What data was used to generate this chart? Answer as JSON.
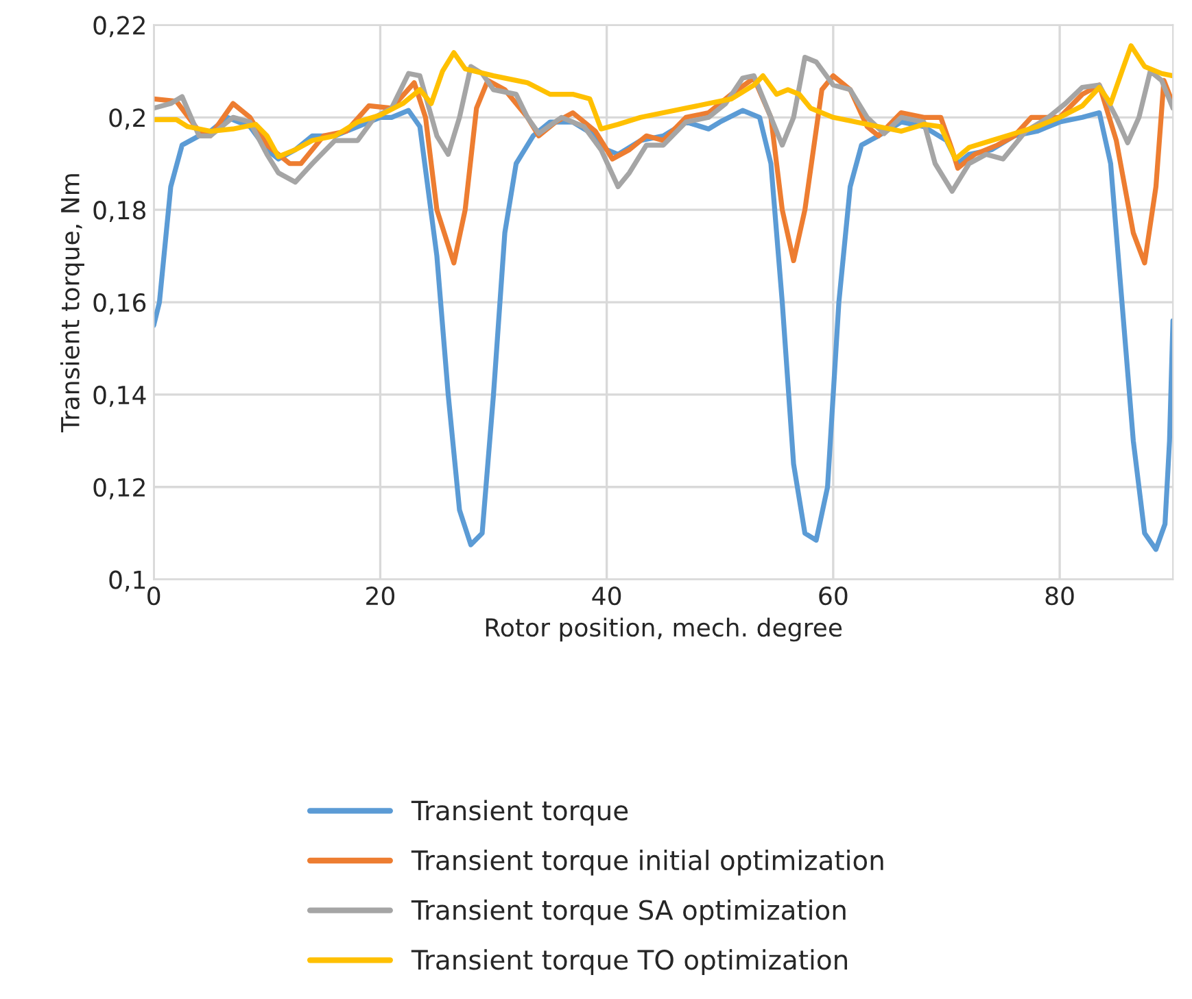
{
  "chart_data": {
    "type": "line",
    "xlabel": "Rotor position, mech. degree",
    "ylabel": "Transient torque, Nm",
    "xlim": [
      0,
      90
    ],
    "xticks": [
      0,
      20,
      40,
      60,
      80
    ],
    "ylim": [
      0.1,
      0.22
    ],
    "yticks": [
      {
        "value": 0.1,
        "label": "0,1"
      },
      {
        "value": 0.12,
        "label": "0,12"
      },
      {
        "value": 0.14,
        "label": "0,14"
      },
      {
        "value": 0.16,
        "label": "0,16"
      },
      {
        "value": 0.18,
        "label": "0,18"
      },
      {
        "value": 0.2,
        "label": "0,2"
      },
      {
        "value": 0.22,
        "label": "0,22"
      }
    ],
    "grid": true,
    "legend": "bottom",
    "marker": "none",
    "line_style": "solid",
    "series": [
      {
        "name": "Transient torque",
        "color": "#5b9bd5",
        "x": [
          0,
          0.5,
          1.5,
          2.5,
          4,
          5,
          6.5,
          8.5,
          10,
          11,
          12.5,
          14,
          16,
          18,
          20,
          21,
          22.5,
          23.5,
          25,
          26,
          27,
          28,
          29,
          30,
          31,
          32,
          33.5,
          35,
          37,
          39,
          40,
          41,
          43,
          45,
          47,
          49,
          50,
          52,
          53.5,
          54.5,
          55.5,
          56.5,
          57.5,
          58.5,
          59.5,
          60.5,
          61.5,
          62.5,
          64,
          66,
          68,
          70,
          71,
          72,
          74,
          76,
          78,
          80,
          82,
          83.5,
          84.5,
          85.5,
          86.5,
          87.5,
          88.5,
          89.3,
          89.7,
          90
        ],
        "values": [
          0.155,
          0.16,
          0.185,
          0.194,
          0.196,
          0.197,
          0.2,
          0.198,
          0.193,
          0.191,
          0.193,
          0.196,
          0.196,
          0.198,
          0.2,
          0.2,
          0.2015,
          0.198,
          0.17,
          0.14,
          0.115,
          0.1075,
          0.11,
          0.14,
          0.175,
          0.19,
          0.196,
          0.199,
          0.199,
          0.196,
          0.193,
          0.192,
          0.195,
          0.196,
          0.199,
          0.1975,
          0.199,
          0.2015,
          0.2,
          0.19,
          0.16,
          0.125,
          0.11,
          0.1085,
          0.12,
          0.16,
          0.185,
          0.194,
          0.196,
          0.199,
          0.198,
          0.195,
          0.19,
          0.192,
          0.193,
          0.196,
          0.197,
          0.199,
          0.2,
          0.201,
          0.19,
          0.16,
          0.13,
          0.11,
          0.1065,
          0.112,
          0.13,
          0.156
        ]
      },
      {
        "name": "Transient torque initial optimization",
        "color": "#ed7d31",
        "x": [
          0,
          2,
          4,
          5,
          7,
          8.5,
          10,
          12,
          13,
          15,
          17,
          19,
          21,
          23,
          24,
          25,
          26.5,
          27.5,
          28.5,
          29.5,
          31,
          33,
          34,
          35.5,
          37,
          39,
          40.5,
          42,
          43.5,
          45,
          47,
          49,
          51,
          53,
          54.5,
          55.5,
          56.5,
          57.5,
          59,
          60,
          61.5,
          63,
          64,
          66,
          68,
          69.5,
          70.5,
          71,
          72.5,
          74.5,
          76,
          77.5,
          80,
          82,
          83.5,
          85,
          86.5,
          87.5,
          88.5,
          89.2,
          90
        ],
        "values": [
          0.204,
          0.2035,
          0.197,
          0.196,
          0.203,
          0.2,
          0.194,
          0.19,
          0.19,
          0.196,
          0.197,
          0.2025,
          0.202,
          0.2075,
          0.2,
          0.18,
          0.1685,
          0.18,
          0.202,
          0.208,
          0.206,
          0.2,
          0.196,
          0.199,
          0.201,
          0.197,
          0.191,
          0.193,
          0.196,
          0.195,
          0.2,
          0.201,
          0.205,
          0.2085,
          0.2,
          0.18,
          0.169,
          0.18,
          0.206,
          0.209,
          0.206,
          0.198,
          0.196,
          0.201,
          0.2,
          0.2,
          0.193,
          0.189,
          0.192,
          0.194,
          0.196,
          0.2,
          0.2,
          0.205,
          0.207,
          0.195,
          0.175,
          0.1685,
          0.185,
          0.208,
          0.203
        ]
      },
      {
        "name": "Transient torque SA optimization",
        "color": "#a5a5a5",
        "x": [
          0,
          1.5,
          2.5,
          4,
          5,
          7,
          8.5,
          10,
          11,
          12.5,
          14,
          16,
          18,
          19.5,
          21,
          22.5,
          23.5,
          25,
          26,
          27,
          28,
          29,
          30,
          32,
          33,
          34,
          36,
          38,
          39.5,
          41,
          42,
          43.5,
          45,
          47,
          49,
          50.5,
          52,
          53,
          54.5,
          55.5,
          56.5,
          57.5,
          58.5,
          60,
          61.5,
          63,
          64.5,
          66,
          68,
          69,
          70.5,
          72,
          73.5,
          75,
          77,
          79,
          80.5,
          82,
          83.5,
          85,
          86,
          87,
          88,
          89,
          90
        ],
        "values": [
          0.202,
          0.203,
          0.2045,
          0.196,
          0.196,
          0.2,
          0.199,
          0.192,
          0.188,
          0.186,
          0.19,
          0.195,
          0.195,
          0.2,
          0.202,
          0.2095,
          0.209,
          0.196,
          0.192,
          0.2,
          0.211,
          0.2095,
          0.206,
          0.205,
          0.2,
          0.1965,
          0.2,
          0.198,
          0.193,
          0.185,
          0.188,
          0.194,
          0.194,
          0.199,
          0.2,
          0.203,
          0.2085,
          0.209,
          0.2,
          0.194,
          0.2,
          0.213,
          0.212,
          0.207,
          0.206,
          0.2,
          0.1965,
          0.2,
          0.199,
          0.19,
          0.184,
          0.19,
          0.192,
          0.191,
          0.197,
          0.2,
          0.203,
          0.2065,
          0.207,
          0.2,
          0.1945,
          0.2,
          0.21,
          0.208,
          0.202
        ]
      },
      {
        "name": "Transient torque TO optimization",
        "color": "#ffc000",
        "x": [
          0,
          2,
          3,
          5,
          7,
          9,
          10,
          11,
          12.5,
          14,
          16,
          18,
          20,
          22,
          23.5,
          24.5,
          25.5,
          26.5,
          27.5,
          30,
          32,
          33,
          35,
          37,
          38.5,
          39.5,
          41,
          43,
          45,
          47,
          49,
          51,
          53,
          53.8,
          55,
          56,
          57,
          58,
          60,
          62,
          64,
          66,
          68,
          69.5,
          70.8,
          72,
          74,
          76,
          78,
          80,
          82,
          83.5,
          84.5,
          85.5,
          86.3,
          87.5,
          89,
          90
        ],
        "values": [
          0.1995,
          0.1995,
          0.198,
          0.197,
          0.1975,
          0.1985,
          0.196,
          0.1915,
          0.193,
          0.195,
          0.196,
          0.199,
          0.2005,
          0.203,
          0.206,
          0.203,
          0.21,
          0.214,
          0.2105,
          0.209,
          0.208,
          0.2075,
          0.205,
          0.205,
          0.204,
          0.1975,
          0.1985,
          0.2,
          0.201,
          0.202,
          0.203,
          0.204,
          0.207,
          0.209,
          0.205,
          0.206,
          0.205,
          0.202,
          0.2,
          0.199,
          0.198,
          0.197,
          0.1985,
          0.198,
          0.191,
          0.1935,
          0.195,
          0.1965,
          0.198,
          0.2,
          0.2025,
          0.2065,
          0.203,
          0.21,
          0.2155,
          0.211,
          0.2095,
          0.209
        ]
      }
    ]
  }
}
